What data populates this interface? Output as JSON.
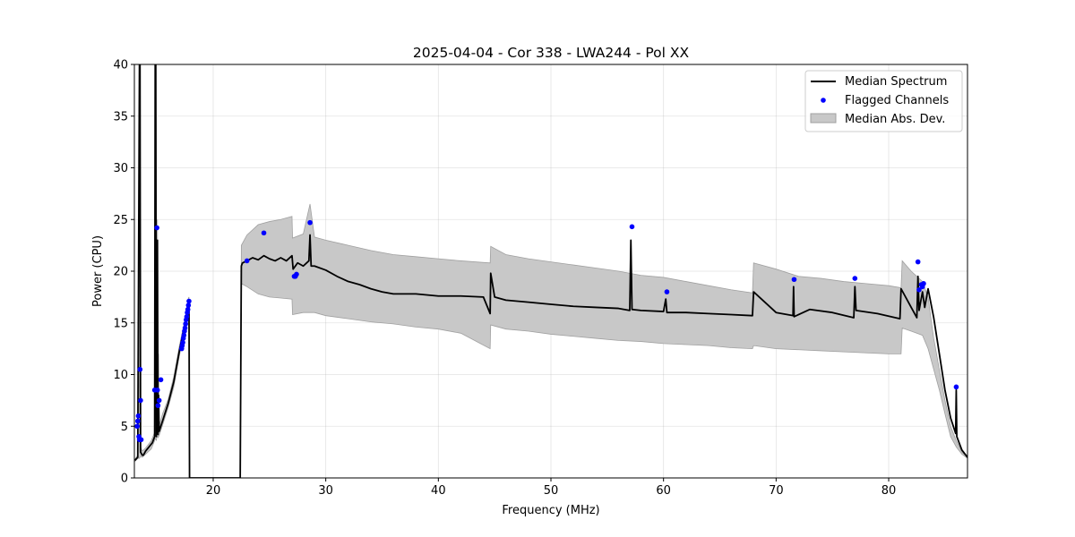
{
  "chart_data": {
    "type": "line",
    "title": "2025-04-04 - Cor 338 - LWA244 - Pol XX",
    "xlabel": "Frequency (MHz)",
    "ylabel": "Power (CPU)",
    "xlim": [
      13.0,
      87.0
    ],
    "ylim": [
      0,
      40
    ],
    "xticks": [
      20,
      30,
      40,
      50,
      60,
      70,
      80
    ],
    "yticks": [
      0,
      5,
      10,
      15,
      20,
      25,
      30,
      35,
      40
    ],
    "grid": true,
    "legend_position": "top-right",
    "colors": {
      "median": "#000000",
      "flagged": "#0000ff",
      "band": "#c8c8c8",
      "band_edge": "#a0a0a0"
    },
    "series": [
      {
        "name": "Median Spectrum",
        "kind": "line",
        "x": [
          13.05,
          13.3,
          13.45,
          13.5,
          13.55,
          13.7,
          13.8,
          14.0,
          14.3,
          14.6,
          14.8,
          14.85,
          14.9,
          14.95,
          15.0,
          15.05,
          15.1,
          15.15,
          15.2,
          15.5,
          16.0,
          16.5,
          17.0,
          17.5,
          17.8,
          17.85,
          17.9,
          22.4,
          22.5,
          22.6,
          23.0,
          23.5,
          24.0,
          24.5,
          25.0,
          25.5,
          26.0,
          26.5,
          27.0,
          27.1,
          27.5,
          28.0,
          28.5,
          28.6,
          28.7,
          29.0,
          30.0,
          31.0,
          32.0,
          33.0,
          34.0,
          35.0,
          36.0,
          38.0,
          40.0,
          42.0,
          44.0,
          44.6,
          44.65,
          45.0,
          46.0,
          48.0,
          50.0,
          52.0,
          54.0,
          56.0,
          57.0,
          57.1,
          57.2,
          58.0,
          60.0,
          60.2,
          60.3,
          62.0,
          64.0,
          66.0,
          67.9,
          68.0,
          70.0,
          71.5,
          71.55,
          71.6,
          73.0,
          75.0,
          76.9,
          77.0,
          77.1,
          79.0,
          81.0,
          81.1,
          82.0,
          82.5,
          82.6,
          82.7,
          83.0,
          83.2,
          83.5,
          84.0,
          84.5,
          85.0,
          85.5,
          85.95,
          86.0,
          86.05,
          86.5,
          87.0
        ],
        "y": [
          1.7,
          2.0,
          40.0,
          40.0,
          2.5,
          2.2,
          2.2,
          2.6,
          3.0,
          3.4,
          4.0,
          40.0,
          40.0,
          4.0,
          8.0,
          23.0,
          4.2,
          8.0,
          4.5,
          5.5,
          7.2,
          9.3,
          12.3,
          15.0,
          17.0,
          17.2,
          0.0,
          0.0,
          20.5,
          20.8,
          21.0,
          21.3,
          21.1,
          21.5,
          21.2,
          21.0,
          21.3,
          21.0,
          21.5,
          20.2,
          20.8,
          20.5,
          21.0,
          23.5,
          20.5,
          20.5,
          20.1,
          19.5,
          19.0,
          18.7,
          18.3,
          18.0,
          17.8,
          17.8,
          17.6,
          17.6,
          17.5,
          15.9,
          19.8,
          17.5,
          17.2,
          17.0,
          16.8,
          16.6,
          16.5,
          16.4,
          16.2,
          23.0,
          16.3,
          16.2,
          16.1,
          17.3,
          16.0,
          16.0,
          15.9,
          15.8,
          15.7,
          18.0,
          16.0,
          15.7,
          18.5,
          15.6,
          16.3,
          16.0,
          15.5,
          18.5,
          16.2,
          15.9,
          15.4,
          18.3,
          16.5,
          15.5,
          19.5,
          16.2,
          18.0,
          16.5,
          18.3,
          15.5,
          12.0,
          8.5,
          5.8,
          4.3,
          8.5,
          4.0,
          2.7,
          2.0
        ]
      },
      {
        "name": "Flagged Channels",
        "kind": "scatter",
        "x": [
          13.25,
          13.3,
          13.35,
          13.4,
          13.45,
          13.5,
          13.55,
          13.6,
          14.8,
          15.0,
          15.05,
          15.1,
          15.2,
          15.35,
          17.2,
          17.25,
          17.3,
          17.35,
          17.4,
          17.45,
          17.5,
          17.55,
          17.6,
          17.65,
          17.7,
          17.75,
          17.8,
          17.85,
          23.0,
          24.5,
          27.2,
          27.3,
          27.4,
          28.6,
          57.2,
          60.3,
          71.6,
          77.0,
          82.6,
          82.7,
          82.9,
          83.0,
          83.1,
          86.0
        ],
        "y": [
          5.0,
          5.5,
          6.0,
          4.0,
          3.7,
          10.5,
          7.5,
          3.7,
          8.5,
          24.2,
          8.5,
          7.0,
          7.5,
          9.5,
          12.5,
          12.8,
          13.1,
          13.5,
          13.8,
          14.2,
          14.5,
          14.9,
          15.3,
          15.6,
          16.0,
          16.3,
          16.7,
          17.1,
          21.0,
          23.7,
          19.5,
          19.5,
          19.7,
          24.7,
          24.3,
          18.0,
          19.2,
          19.3,
          20.9,
          18.2,
          18.7,
          18.5,
          18.8,
          8.8
        ]
      },
      {
        "name": "Median Abs. Dev.",
        "kind": "area",
        "x": [
          13.05,
          13.3,
          13.45,
          13.5,
          13.55,
          13.7,
          14.0,
          14.5,
          14.8,
          14.85,
          14.9,
          14.95,
          15.0,
          15.05,
          15.1,
          15.15,
          15.2,
          15.5,
          16.0,
          16.5,
          17.0,
          17.5,
          17.8,
          17.85,
          17.9,
          22.4,
          22.5,
          23.0,
          24.0,
          25.0,
          26.0,
          27.0,
          27.05,
          28.0,
          28.6,
          29.0,
          30.0,
          32.0,
          34.0,
          36.0,
          38.0,
          40.0,
          42.0,
          44.6,
          44.65,
          46.0,
          48.0,
          50.0,
          52.0,
          54.0,
          56.0,
          58.0,
          60.0,
          62.0,
          64.0,
          66.0,
          67.9,
          68.0,
          70.0,
          72.0,
          74.0,
          76.0,
          78.0,
          80.0,
          81.1,
          81.2,
          82.0,
          83.0,
          83.5,
          84.0,
          84.5,
          85.0,
          85.5,
          86.0,
          86.5,
          87.0
        ],
        "upper": [
          1.8,
          2.2,
          10.0,
          40.0,
          3.0,
          2.6,
          2.9,
          3.6,
          4.4,
          40.0,
          37.0,
          5.0,
          12.0,
          25.0,
          6.0,
          12.0,
          5.0,
          6.2,
          7.6,
          9.8,
          12.8,
          15.3,
          17.4,
          17.5,
          0.0,
          0.0,
          22.5,
          23.5,
          24.5,
          24.8,
          25.0,
          25.3,
          23.2,
          23.6,
          26.5,
          23.3,
          23.0,
          22.5,
          22.0,
          21.6,
          21.4,
          21.2,
          21.0,
          20.8,
          22.4,
          21.6,
          21.2,
          20.9,
          20.6,
          20.3,
          20.0,
          19.6,
          19.4,
          19.0,
          18.6,
          18.2,
          17.9,
          20.8,
          20.2,
          19.5,
          19.3,
          19.0,
          18.8,
          18.6,
          18.4,
          21.0,
          20.0,
          19.0,
          17.5,
          13.5,
          10.5,
          7.5,
          5.0,
          3.6,
          2.5,
          2.0
        ],
        "lower": [
          1.6,
          1.9,
          1.9,
          2.0,
          2.1,
          2.0,
          2.3,
          2.8,
          3.6,
          3.8,
          3.8,
          3.6,
          4.0,
          4.0,
          3.9,
          4.0,
          4.1,
          5.1,
          6.8,
          8.8,
          11.8,
          14.7,
          16.6,
          16.8,
          0.0,
          0.0,
          18.8,
          18.5,
          17.8,
          17.5,
          17.4,
          17.3,
          15.8,
          16.0,
          16.0,
          16.0,
          15.7,
          15.4,
          15.1,
          14.9,
          14.6,
          14.4,
          14.0,
          12.5,
          14.8,
          14.4,
          14.2,
          13.9,
          13.7,
          13.5,
          13.3,
          13.2,
          13.0,
          12.9,
          12.8,
          12.6,
          12.5,
          12.8,
          12.5,
          12.4,
          12.3,
          12.2,
          12.1,
          12.0,
          12.0,
          14.5,
          14.2,
          13.8,
          12.5,
          10.5,
          8.5,
          6.2,
          4.0,
          3.0,
          2.3,
          1.9
        ]
      }
    ]
  }
}
